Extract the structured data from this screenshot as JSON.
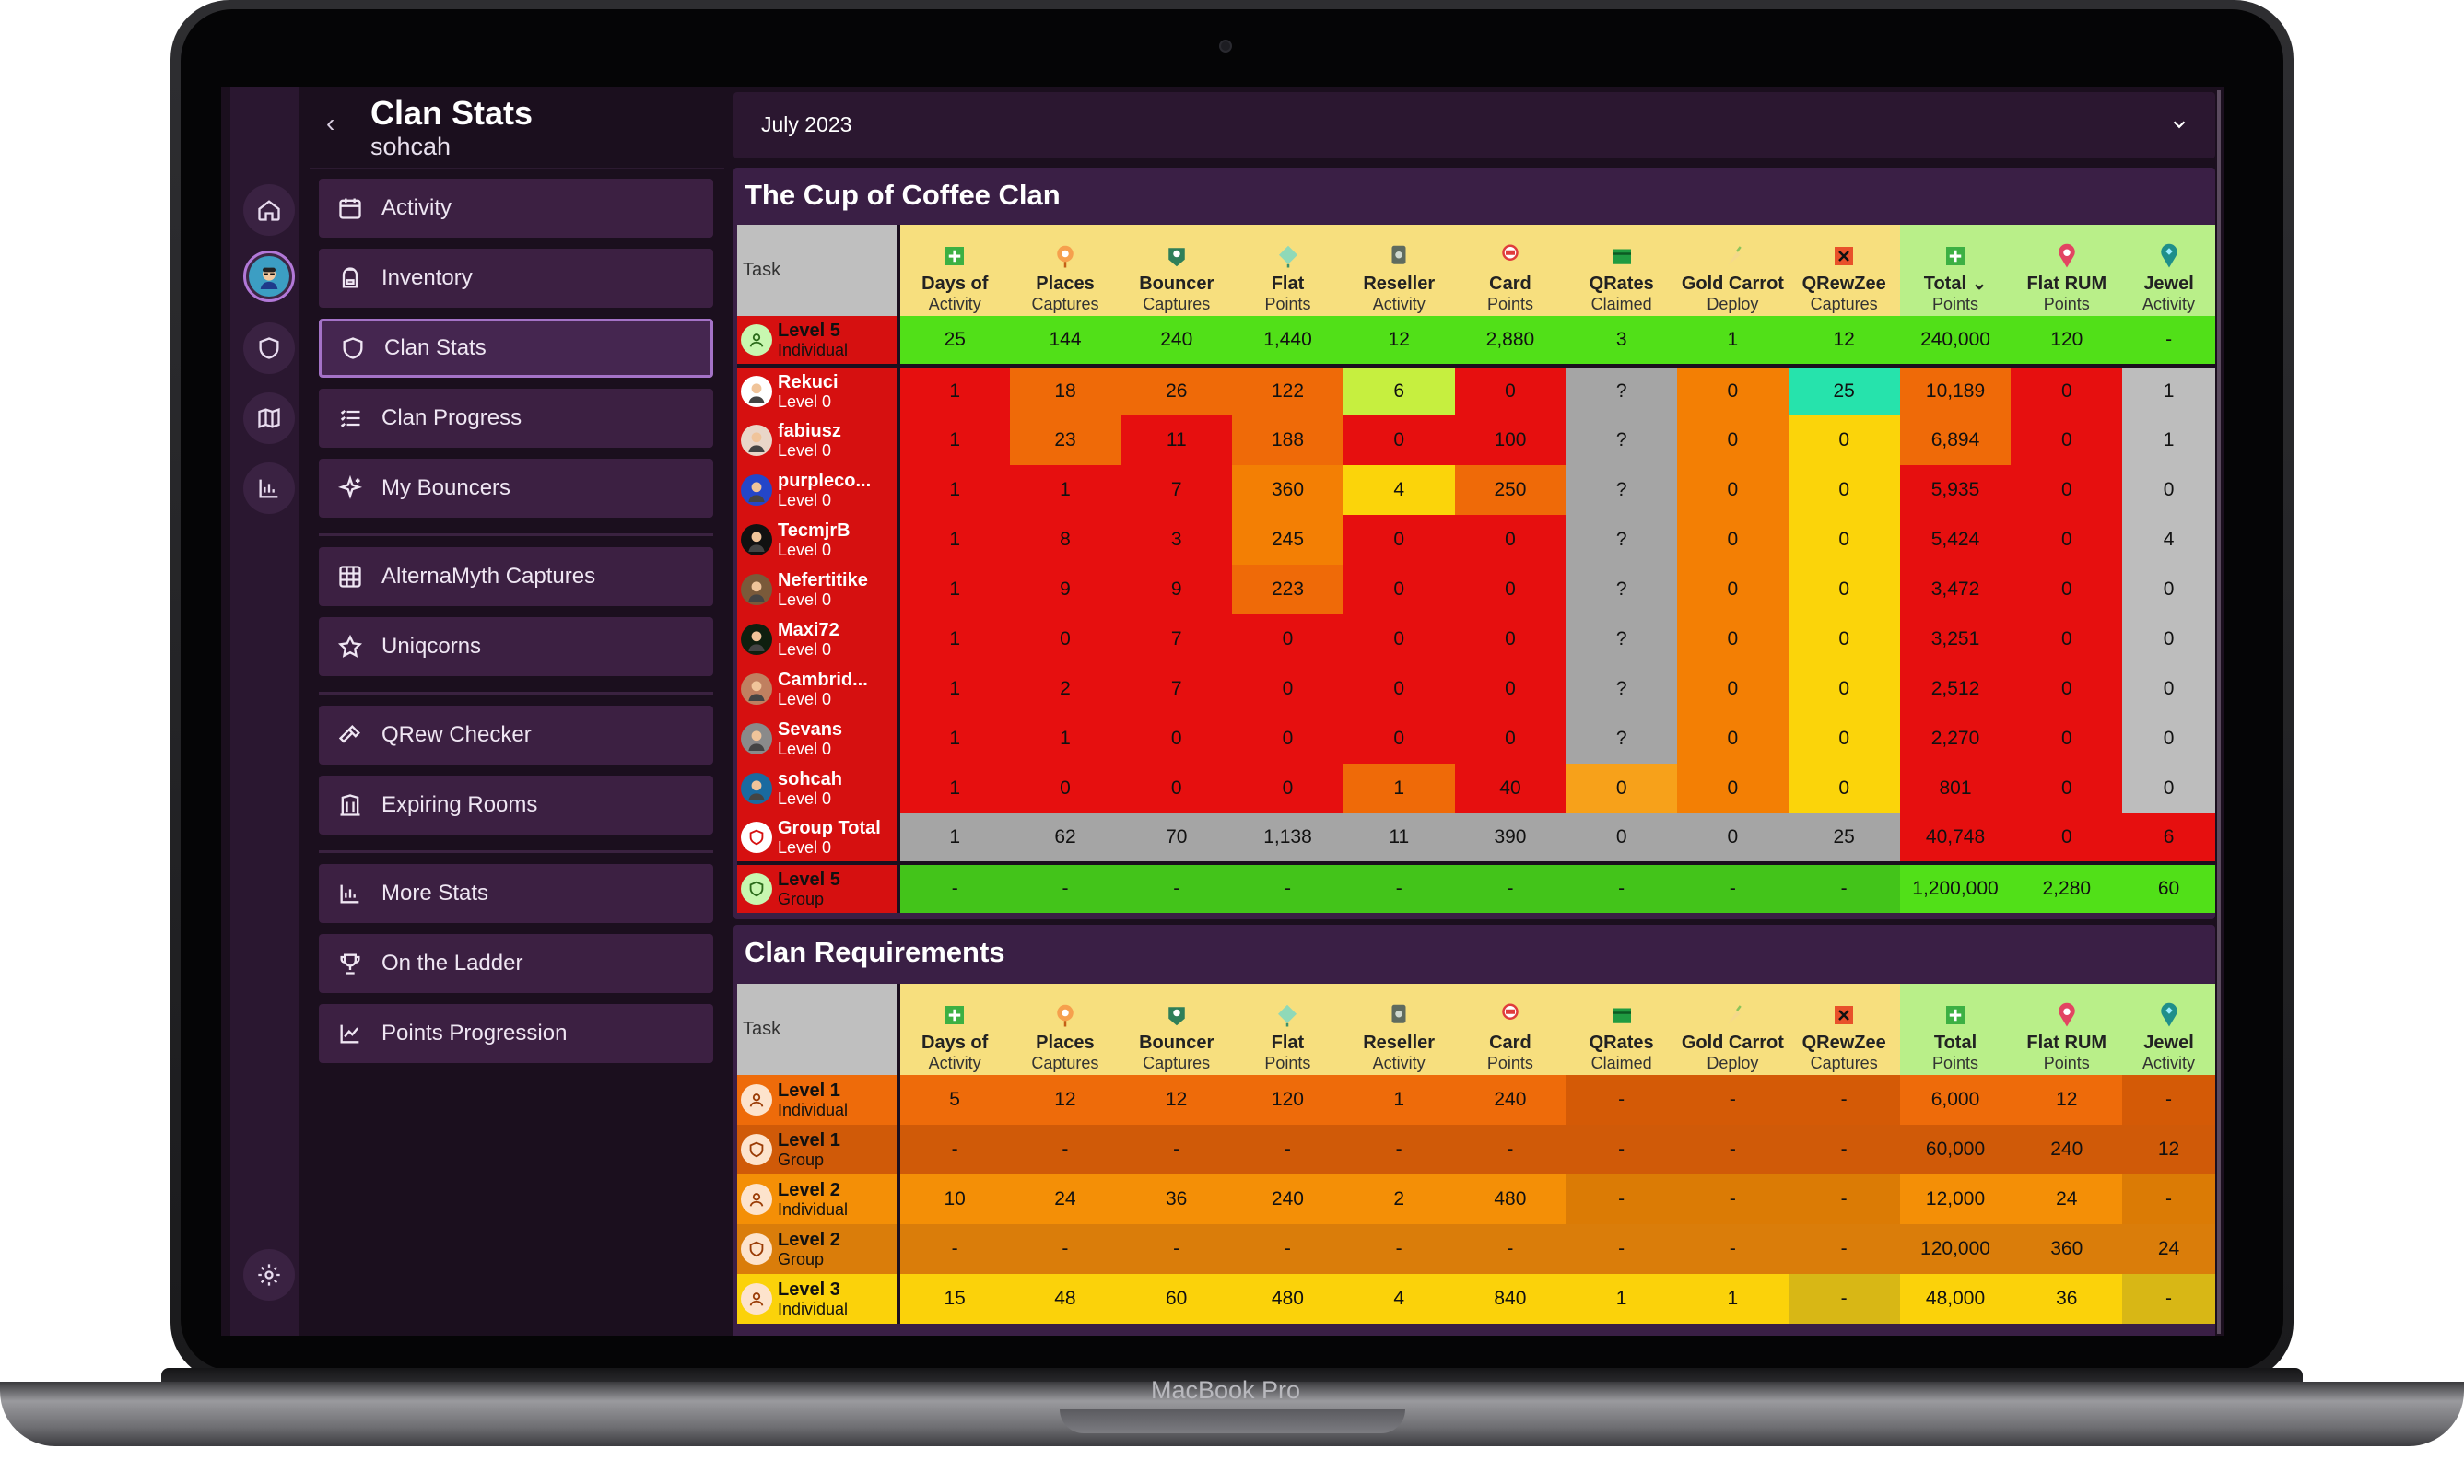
{
  "device_label": "MacBook Pro",
  "sidebar": {
    "title": "Clan Stats",
    "subtitle": "sohcah",
    "items": [
      {
        "label": "Activity",
        "icon": "calendar-icon"
      },
      {
        "label": "Inventory",
        "icon": "backpack-icon"
      },
      {
        "label": "Clan Stats",
        "icon": "shield-icon",
        "active": true
      },
      {
        "label": "Clan Progress",
        "icon": "list-icon"
      },
      {
        "label": "My Bouncers",
        "icon": "sparkle-icon"
      },
      {
        "label": "AlternaMyth Captures",
        "icon": "grid-icon"
      },
      {
        "label": "Uniqcorns",
        "icon": "star-icon"
      },
      {
        "label": "QRew Checker",
        "icon": "hammer-icon"
      },
      {
        "label": "Expiring Rooms",
        "icon": "building-icon"
      },
      {
        "label": "More Stats",
        "icon": "bar-chart-icon"
      },
      {
        "label": "On the Ladder",
        "icon": "trophy-icon"
      },
      {
        "label": "Points Progression",
        "icon": "line-chart-icon"
      }
    ]
  },
  "month_select": {
    "value": "July 2023"
  },
  "columns": [
    {
      "h1": "Days of",
      "h2": "Activity"
    },
    {
      "h1": "Places",
      "h2": "Captures"
    },
    {
      "h1": "Bouncer",
      "h2": "Captures"
    },
    {
      "h1": "Flat",
      "h2": "Points"
    },
    {
      "h1": "Reseller",
      "h2": "Activity"
    },
    {
      "h1": "Card",
      "h2": "Points"
    },
    {
      "h1": "QRates",
      "h2": "Claimed"
    },
    {
      "h1": "Gold Carrot",
      "h2": "Deploy"
    },
    {
      "h1": "QRewZee",
      "h2": "Captures"
    },
    {
      "h1": "Total",
      "h2": "Points"
    },
    {
      "h1": "Flat RUM",
      "h2": "Points"
    },
    {
      "h1": "Jewel",
      "h2": "Activity"
    }
  ],
  "clan": {
    "title": "The Cup of Coffee Clan",
    "task_label": "Task",
    "sort_indicator": "⌄",
    "level_row": {
      "name": "Level 5",
      "sub": "Individual",
      "values": [
        "25",
        "144",
        "240",
        "1,440",
        "12",
        "2,880",
        "3",
        "1",
        "12",
        "240,000",
        "120",
        "-"
      ]
    },
    "members": [
      {
        "name": "Rekuci",
        "sub": "Level 0",
        "values": [
          "1",
          "18",
          "26",
          "122",
          "6",
          "0",
          "?",
          "0",
          "25",
          "10,189",
          "0",
          "1"
        ],
        "colors": [
          "r",
          "o",
          "o",
          "o",
          "ly",
          "r",
          "g",
          "o2",
          "t",
          "o",
          "r",
          "lg"
        ]
      },
      {
        "name": "fabiusz",
        "sub": "Level 0",
        "values": [
          "1",
          "23",
          "11",
          "188",
          "0",
          "100",
          "?",
          "0",
          "0",
          "6,894",
          "0",
          "1"
        ],
        "colors": [
          "r",
          "o",
          "r",
          "o",
          "r",
          "r",
          "g",
          "o2",
          "y",
          "o",
          "r",
          "lg"
        ]
      },
      {
        "name": "purpleco...",
        "sub": "Level 0",
        "values": [
          "1",
          "1",
          "7",
          "360",
          "4",
          "250",
          "?",
          "0",
          "0",
          "5,935",
          "0",
          "0"
        ],
        "colors": [
          "r",
          "r",
          "r",
          "o2",
          "y",
          "o",
          "g",
          "o2",
          "y",
          "r",
          "r",
          "lg"
        ]
      },
      {
        "name": "TecmjrB",
        "sub": "Level 0",
        "values": [
          "1",
          "8",
          "3",
          "245",
          "0",
          "0",
          "?",
          "0",
          "0",
          "5,424",
          "0",
          "4"
        ],
        "colors": [
          "r",
          "r",
          "r",
          "o2",
          "r",
          "r",
          "g",
          "o2",
          "y",
          "r",
          "r",
          "lg"
        ]
      },
      {
        "name": "Nefertitike",
        "sub": "Level 0",
        "values": [
          "1",
          "9",
          "9",
          "223",
          "0",
          "0",
          "?",
          "0",
          "0",
          "3,472",
          "0",
          "0"
        ],
        "colors": [
          "r",
          "r",
          "r",
          "o",
          "r",
          "r",
          "g",
          "o2",
          "y",
          "r",
          "r",
          "lg"
        ]
      },
      {
        "name": "Maxi72",
        "sub": "Level 0",
        "values": [
          "1",
          "0",
          "7",
          "0",
          "0",
          "0",
          "?",
          "0",
          "0",
          "3,251",
          "0",
          "0"
        ],
        "colors": [
          "r",
          "r",
          "r",
          "r",
          "r",
          "r",
          "g",
          "o2",
          "y",
          "r",
          "r",
          "lg"
        ]
      },
      {
        "name": "Cambrid...",
        "sub": "Level 0",
        "values": [
          "1",
          "2",
          "7",
          "0",
          "0",
          "0",
          "?",
          "0",
          "0",
          "2,512",
          "0",
          "0"
        ],
        "colors": [
          "r",
          "r",
          "r",
          "r",
          "r",
          "r",
          "g",
          "o2",
          "y",
          "r",
          "r",
          "lg"
        ]
      },
      {
        "name": "Sevans",
        "sub": "Level 0",
        "values": [
          "1",
          "1",
          "0",
          "0",
          "0",
          "0",
          "?",
          "0",
          "0",
          "2,270",
          "0",
          "0"
        ],
        "colors": [
          "r",
          "r",
          "r",
          "r",
          "r",
          "r",
          "g",
          "o2",
          "y",
          "r",
          "r",
          "lg"
        ]
      },
      {
        "name": "sohcah",
        "sub": "Level 0",
        "values": [
          "1",
          "0",
          "0",
          "0",
          "1",
          "40",
          "0",
          "0",
          "0",
          "801",
          "0",
          "0"
        ],
        "colors": [
          "r",
          "r",
          "r",
          "r",
          "o",
          "r",
          "or",
          "o2",
          "y",
          "r",
          "r",
          "lg"
        ]
      }
    ],
    "group_total": {
      "name": "Group Total",
      "sub": "Level 0",
      "values": [
        "1",
        "62",
        "70",
        "1,138",
        "11",
        "390",
        "0",
        "0",
        "25",
        "40,748",
        "0",
        "6"
      ],
      "colors": [
        "g",
        "g",
        "g",
        "g",
        "g",
        "g",
        "g",
        "g",
        "g",
        "r",
        "r",
        "r"
      ]
    },
    "group_level_row": {
      "name": "Level 5",
      "sub": "Group",
      "values": [
        "-",
        "-",
        "-",
        "-",
        "-",
        "-",
        "-",
        "-",
        "-",
        "1,200,000",
        "2,280",
        "60"
      ]
    }
  },
  "requirements": {
    "title": "Clan Requirements",
    "task_label": "Task",
    "rows": [
      {
        "name": "Level 1",
        "sub": "Individual",
        "values": [
          "5",
          "12",
          "12",
          "120",
          "1",
          "240",
          "-",
          "-",
          "-",
          "6,000",
          "12",
          "-"
        ],
        "bg": "#ee6b0a",
        "dim": "#d45a06"
      },
      {
        "name": "Level 1",
        "sub": "Group",
        "values": [
          "-",
          "-",
          "-",
          "-",
          "-",
          "-",
          "-",
          "-",
          "-",
          "60,000",
          "240",
          "12"
        ],
        "bg": "#d05a08",
        "dim": "#d05a08"
      },
      {
        "name": "Level 2",
        "sub": "Individual",
        "values": [
          "10",
          "24",
          "36",
          "240",
          "2",
          "480",
          "-",
          "-",
          "-",
          "12,000",
          "24",
          "-"
        ],
        "bg": "#f48f06",
        "dim": "#db7b05"
      },
      {
        "name": "Level 2",
        "sub": "Group",
        "values": [
          "-",
          "-",
          "-",
          "-",
          "-",
          "-",
          "-",
          "-",
          "-",
          "120,000",
          "360",
          "24"
        ],
        "bg": "#da7d0a",
        "dim": "#da7d0a"
      },
      {
        "name": "Level 3",
        "sub": "Individual",
        "values": [
          "15",
          "48",
          "60",
          "480",
          "4",
          "840",
          "1",
          "1",
          "-",
          "48,000",
          "36",
          "-"
        ],
        "bg": "#fbd20a",
        "dim": "#d8b715"
      }
    ]
  }
}
